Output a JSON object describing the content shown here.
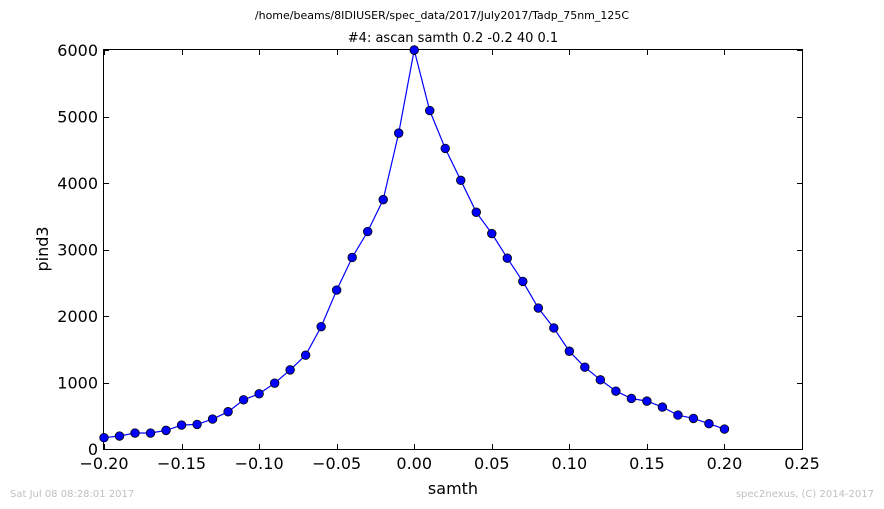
{
  "header": {
    "path": "/home/beams/8IDIUSER/spec_data/2017/July2017/Tadp_75nm_125C"
  },
  "footer": {
    "timestamp": "Sat Jul 08 08:28:01 2017",
    "credit": "spec2nexus, (C) 2014-2017"
  },
  "colors": {
    "series": "#0000ff",
    "frame": "#000000",
    "footer": "#c0c0c0"
  },
  "chart_data": {
    "type": "line",
    "title": "#4: ascan  samth 0.2 -0.2  40 0.1",
    "xlabel": "samth",
    "ylabel": "pind3",
    "xlim": [
      -0.2,
      0.25
    ],
    "ylim": [
      0,
      6000
    ],
    "grid": false,
    "xticks": [
      -0.2,
      -0.15,
      -0.1,
      -0.05,
      0.0,
      0.05,
      0.1,
      0.15,
      0.2,
      0.25
    ],
    "xtick_labels": [
      "−0.20",
      "−0.15",
      "−0.10",
      "−0.05",
      "0.00",
      "0.05",
      "0.10",
      "0.15",
      "0.20",
      "0.25"
    ],
    "yticks": [
      0,
      1000,
      2000,
      3000,
      4000,
      5000,
      6000
    ],
    "ytick_labels": [
      "0",
      "1000",
      "2000",
      "3000",
      "4000",
      "5000",
      "6000"
    ],
    "series": [
      {
        "marker": "circle",
        "x": [
          -0.2,
          -0.19,
          -0.18,
          -0.17,
          -0.16,
          -0.15,
          -0.14,
          -0.13,
          -0.12,
          -0.11,
          -0.1,
          -0.09,
          -0.08,
          -0.07,
          -0.06,
          -0.05,
          -0.04,
          -0.03,
          -0.02,
          -0.01,
          0.0,
          0.01,
          0.02,
          0.03,
          0.04,
          0.05,
          0.06,
          0.07,
          0.08,
          0.09,
          0.1,
          0.11,
          0.12,
          0.13,
          0.14,
          0.15,
          0.16,
          0.17,
          0.18,
          0.19,
          0.2
        ],
        "y": [
          170,
          195,
          240,
          240,
          280,
          360,
          370,
          450,
          560,
          740,
          830,
          990,
          1190,
          1410,
          1840,
          2390,
          2880,
          3270,
          3750,
          4750,
          6000,
          5090,
          4520,
          4040,
          3560,
          3240,
          2870,
          2520,
          2120,
          1820,
          1470,
          1230,
          1040,
          870,
          760,
          720,
          630,
          510,
          460,
          380,
          300
        ]
      }
    ]
  }
}
